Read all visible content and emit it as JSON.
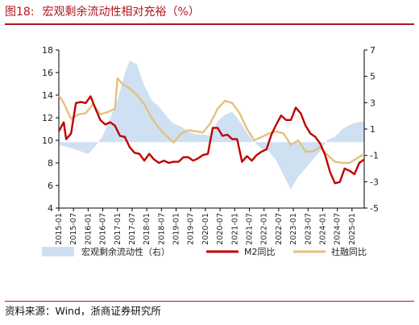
{
  "header": {
    "figure_num": "图18:",
    "title": "宏观剩余流动性相对充裕（%）"
  },
  "source": "资料来源：Wind，浙商证券研究所",
  "colors": {
    "area": "#cfe0f3",
    "m2": "#c00000",
    "tsf": "#e2c27c",
    "title": "#b3161f"
  },
  "chart_data": {
    "type": "line",
    "title": "宏观剩余流动性相对充裕（%）",
    "x_ticks": [
      "2015-01",
      "2015-07",
      "2016-01",
      "2016-07",
      "2017-01",
      "2017-07",
      "2018-01",
      "2018-07",
      "2019-01",
      "2019-07",
      "2020-01",
      "2020-07",
      "2021-01",
      "2021-07",
      "2022-01",
      "2022-07",
      "2023-01",
      "2023-07",
      "2024-01",
      "2024-07",
      "2025-01"
    ],
    "x_range": [
      "2015-01",
      "2025-06"
    ],
    "y_left": {
      "min": 4,
      "max": 18,
      "ticks": [
        4,
        6,
        8,
        10,
        12,
        14,
        16,
        18
      ]
    },
    "y_right": {
      "min": -5,
      "max": 7,
      "ticks": [
        -5,
        -3,
        -1,
        1,
        3,
        5,
        7
      ]
    },
    "grid": false,
    "legend": {
      "position": "bottom",
      "items": [
        "宏观剩余流动性（右）",
        "M2同比",
        "社融同比"
      ]
    },
    "series": [
      {
        "name": "宏观剩余流动性（右）",
        "type": "area",
        "axis": "right",
        "points": [
          [
            "2015-01",
            -0.2
          ],
          [
            "2015-07",
            -0.5
          ],
          [
            "2016-01",
            -0.9
          ],
          [
            "2016-04",
            -0.3
          ],
          [
            "2016-07",
            0.5
          ],
          [
            "2016-10",
            1.8
          ],
          [
            "2017-01",
            3.2
          ],
          [
            "2017-04",
            5.2
          ],
          [
            "2017-06",
            6.2
          ],
          [
            "2017-09",
            5.9
          ],
          [
            "2017-12",
            4.3
          ],
          [
            "2018-03",
            3.2
          ],
          [
            "2018-06",
            2.7
          ],
          [
            "2018-09",
            2.0
          ],
          [
            "2018-12",
            1.4
          ],
          [
            "2019-03",
            1.2
          ],
          [
            "2019-06",
            0.8
          ],
          [
            "2019-09",
            0.6
          ],
          [
            "2019-12",
            0.6
          ],
          [
            "2020-03",
            0.5
          ],
          [
            "2020-06",
            1.6
          ],
          [
            "2020-09",
            2.1
          ],
          [
            "2020-12",
            2.3
          ],
          [
            "2021-03",
            1.6
          ],
          [
            "2021-06",
            0.7
          ],
          [
            "2021-09",
            0.0
          ],
          [
            "2021-12",
            -0.5
          ],
          [
            "2022-03",
            -0.7
          ],
          [
            "2022-06",
            -1.4
          ],
          [
            "2022-09",
            -2.5
          ],
          [
            "2022-12",
            -3.6
          ],
          [
            "2023-03",
            -2.6
          ],
          [
            "2023-06",
            -2.0
          ],
          [
            "2023-09",
            -1.3
          ],
          [
            "2023-12",
            -0.7
          ],
          [
            "2024-03",
            0.2
          ],
          [
            "2024-06",
            0.4
          ],
          [
            "2024-09",
            1.0
          ],
          [
            "2024-12",
            1.3
          ],
          [
            "2025-03",
            1.5
          ],
          [
            "2025-06",
            1.6
          ]
        ]
      },
      {
        "name": "M2同比",
        "type": "line",
        "axis": "left",
        "points": [
          [
            "2015-01",
            10.8
          ],
          [
            "2015-03",
            11.6
          ],
          [
            "2015-04",
            10.1
          ],
          [
            "2015-06",
            10.6
          ],
          [
            "2015-08",
            13.3
          ],
          [
            "2015-10",
            13.4
          ],
          [
            "2015-12",
            13.3
          ],
          [
            "2016-02",
            13.9
          ],
          [
            "2016-04",
            12.8
          ],
          [
            "2016-06",
            11.8
          ],
          [
            "2016-08",
            11.4
          ],
          [
            "2016-10",
            11.6
          ],
          [
            "2016-12",
            11.3
          ],
          [
            "2017-02",
            10.4
          ],
          [
            "2017-04",
            10.3
          ],
          [
            "2017-06",
            9.4
          ],
          [
            "2017-08",
            8.9
          ],
          [
            "2017-10",
            8.8
          ],
          [
            "2017-12",
            8.2
          ],
          [
            "2018-02",
            8.8
          ],
          [
            "2018-04",
            8.3
          ],
          [
            "2018-06",
            8.0
          ],
          [
            "2018-08",
            8.2
          ],
          [
            "2018-10",
            8.0
          ],
          [
            "2018-12",
            8.1
          ],
          [
            "2019-02",
            8.1
          ],
          [
            "2019-04",
            8.5
          ],
          [
            "2019-06",
            8.5
          ],
          [
            "2019-08",
            8.2
          ],
          [
            "2019-10",
            8.4
          ],
          [
            "2019-12",
            8.7
          ],
          [
            "2020-02",
            8.8
          ],
          [
            "2020-04",
            11.1
          ],
          [
            "2020-06",
            11.1
          ],
          [
            "2020-08",
            10.4
          ],
          [
            "2020-10",
            10.5
          ],
          [
            "2020-12",
            10.1
          ],
          [
            "2021-02",
            10.1
          ],
          [
            "2021-04",
            8.1
          ],
          [
            "2021-06",
            8.6
          ],
          [
            "2021-08",
            8.2
          ],
          [
            "2021-10",
            8.7
          ],
          [
            "2021-12",
            9.0
          ],
          [
            "2022-02",
            9.2
          ],
          [
            "2022-04",
            10.5
          ],
          [
            "2022-06",
            11.4
          ],
          [
            "2022-08",
            12.2
          ],
          [
            "2022-10",
            11.8
          ],
          [
            "2022-12",
            11.8
          ],
          [
            "2023-02",
            12.9
          ],
          [
            "2023-04",
            12.4
          ],
          [
            "2023-06",
            11.3
          ],
          [
            "2023-08",
            10.6
          ],
          [
            "2023-10",
            10.3
          ],
          [
            "2023-12",
            9.7
          ],
          [
            "2024-02",
            8.7
          ],
          [
            "2024-04",
            7.2
          ],
          [
            "2024-06",
            6.2
          ],
          [
            "2024-08",
            6.3
          ],
          [
            "2024-10",
            7.5
          ],
          [
            "2024-12",
            7.3
          ],
          [
            "2025-02",
            7.0
          ],
          [
            "2025-04",
            8.0
          ],
          [
            "2025-06",
            8.3
          ]
        ]
      },
      {
        "name": "社融同比",
        "type": "line",
        "axis": "left",
        "points": [
          [
            "2015-01",
            14.0
          ],
          [
            "2015-03",
            13.3
          ],
          [
            "2015-06",
            11.9
          ],
          [
            "2015-09",
            12.3
          ],
          [
            "2015-12",
            12.4
          ],
          [
            "2016-03",
            13.2
          ],
          [
            "2016-06",
            12.3
          ],
          [
            "2016-09",
            12.5
          ],
          [
            "2016-12",
            12.8
          ],
          [
            "2017-01",
            15.5
          ],
          [
            "2017-03",
            15.0
          ],
          [
            "2017-06",
            14.6
          ],
          [
            "2017-09",
            14.0
          ],
          [
            "2017-12",
            13.2
          ],
          [
            "2018-03",
            12.0
          ],
          [
            "2018-06",
            11.1
          ],
          [
            "2018-09",
            10.4
          ],
          [
            "2018-12",
            9.8
          ],
          [
            "2019-03",
            10.6
          ],
          [
            "2019-06",
            10.9
          ],
          [
            "2019-09",
            10.8
          ],
          [
            "2019-12",
            10.7
          ],
          [
            "2020-03",
            11.5
          ],
          [
            "2020-06",
            12.8
          ],
          [
            "2020-09",
            13.5
          ],
          [
            "2020-12",
            13.3
          ],
          [
            "2021-03",
            12.4
          ],
          [
            "2021-06",
            11.0
          ],
          [
            "2021-09",
            10.0
          ],
          [
            "2021-12",
            10.3
          ],
          [
            "2022-03",
            10.6
          ],
          [
            "2022-06",
            10.8
          ],
          [
            "2022-09",
            10.6
          ],
          [
            "2022-12",
            9.6
          ],
          [
            "2023-03",
            10.0
          ],
          [
            "2023-06",
            9.0
          ],
          [
            "2023-09",
            9.0
          ],
          [
            "2023-12",
            9.4
          ],
          [
            "2024-03",
            8.7
          ],
          [
            "2024-06",
            8.1
          ],
          [
            "2024-09",
            8.0
          ],
          [
            "2024-12",
            8.0
          ],
          [
            "2025-03",
            8.4
          ],
          [
            "2025-06",
            8.8
          ]
        ]
      }
    ]
  }
}
